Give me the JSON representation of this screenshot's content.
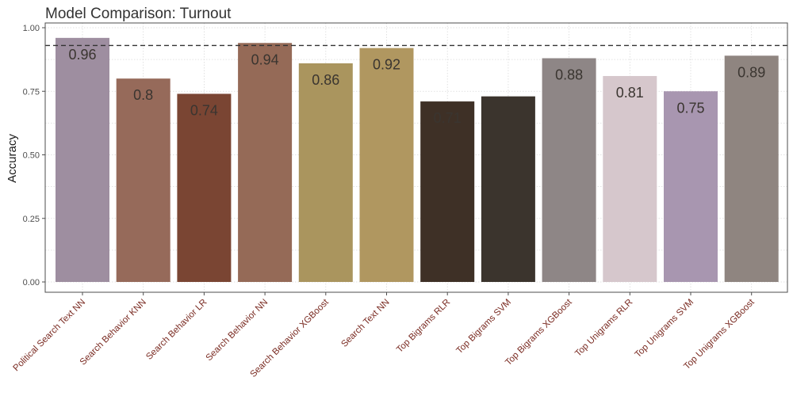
{
  "chart_data": {
    "type": "bar",
    "title": "Model Comparison: Turnout",
    "xlabel": "",
    "ylabel": "Accuracy",
    "ylim": [
      0,
      1.0
    ],
    "yticks": [
      "0.00",
      "0.25",
      "0.50",
      "0.75",
      "1.00"
    ],
    "reference_line": 0.93,
    "grid": true,
    "categories": [
      "Political Search Text NN",
      "Search Behavior KNN",
      "Search Behavior LR",
      "Search Behavior NN",
      "Search Behavior XGBoost",
      "Search Text NN",
      "Top Bigrams RLR",
      "Top Bigrams SVM",
      "Top Bigrams XGBoost",
      "Top Unigrams RLR",
      "Top Unigrams SVM",
      "Top Unigrams XGBoost"
    ],
    "values": [
      0.96,
      0.8,
      0.74,
      0.94,
      0.86,
      0.92,
      0.71,
      0.73,
      0.88,
      0.81,
      0.75,
      0.89
    ],
    "labels": [
      "0.96",
      "0.8",
      "0.74",
      "0.94",
      "0.86",
      "0.92",
      "0.71",
      "",
      "0.88",
      "0.81",
      "0.75",
      "0.89"
    ],
    "colors": [
      "#9e8ea0",
      "#966a5a",
      "#7a4533",
      "#956a57",
      "#aa955e",
      "#b09760",
      "#3e3026",
      "#3b342d",
      "#8e8686",
      "#d6c7cc",
      "#a896b0",
      "#8f8580"
    ]
  }
}
